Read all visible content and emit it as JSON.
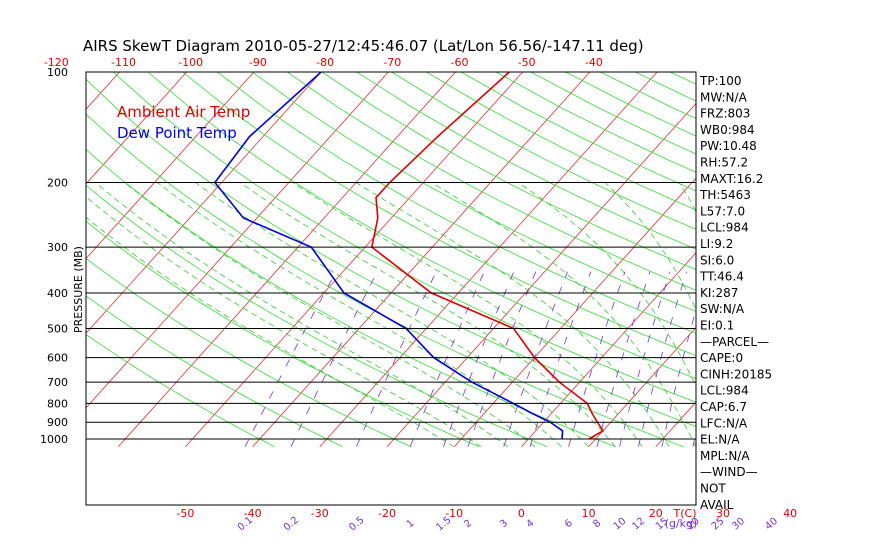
{
  "title": "AIRS SkewT Diagram 2010-05-27/12:45:46.07 (Lat/Lon 56.56/-147.11 deg)",
  "legend": {
    "air_temp": "Ambient Air Temp",
    "dew_temp": "Dew Point Temp"
  },
  "colors": {
    "air": "#e00000",
    "dew": "#0000e0",
    "isotherm": "#e03030",
    "dry_adiabat": "#33dd33",
    "moist_adiabat": "#33cc33",
    "mixing_ratio": "#7733cc",
    "axis_red": "#e00000",
    "ink": "#000000"
  },
  "info": [
    "TP:100",
    "MW:N/A",
    "FRZ:803",
    "WB0:984",
    "PW:10.48",
    "RH:57.2",
    "MAXT:16.2",
    "TH:5463",
    "L57:7.0",
    "LCL:984",
    "LI:9.2",
    "SI:6.0",
    "TT:46.4",
    "KI:287",
    "SW:N/A",
    "EI:0.1",
    "—PARCEL—",
    "CAPE:0",
    "CINH:20185",
    "LCL:984",
    "CAP:6.7",
    "LFC:N/A",
    "EL:N/A",
    "MPL:N/A",
    "—WIND—",
    "NOT",
    "AVAIL"
  ],
  "chart_data": {
    "type": "line",
    "title": "AIRS SkewT Diagram 2010-05-27/12:45:46.07 (Lat/Lon 56.56/-147.11 deg)",
    "ylabel": "PRESSURE (MB)",
    "y_scale": "log",
    "y_direction": "inverted",
    "ylim": [
      1050,
      100
    ],
    "pressure_ticks": [
      100,
      200,
      300,
      400,
      500,
      600,
      700,
      800,
      900,
      1000
    ],
    "bottom_temp_ticks": [
      -50,
      -40,
      -30,
      -20,
      -10,
      0,
      10,
      20,
      30,
      40
    ],
    "bottom_temp_unit": "T(C)",
    "top_temp_ticks": [
      -120,
      -110,
      -100,
      -90,
      -80,
      -70,
      -60,
      -50,
      -40
    ],
    "mixing_ratio_labels": [
      "0.1",
      "0.2",
      "0.5",
      "1",
      "1.5",
      "2",
      "3",
      "4",
      "6",
      "8",
      "10",
      "12",
      "15",
      "20",
      "25",
      "30",
      "40"
    ],
    "mixing_ratio_unit": "(g/kg)",
    "series": [
      {
        "name": "Ambient Air Temp",
        "pressure": [
          1000,
          950,
          900,
          850,
          800,
          700,
          600,
          500,
          400,
          300,
          250,
          220,
          200,
          150,
          100
        ],
        "temp": [
          9,
          10,
          8,
          6,
          4,
          -3,
          -10,
          -17,
          -34,
          -49,
          -52,
          -55,
          -55,
          -54,
          -52
        ]
      },
      {
        "name": "Dew Point Temp",
        "pressure": [
          1000,
          950,
          900,
          850,
          800,
          700,
          600,
          500,
          400,
          300,
          250,
          200,
          150,
          100
        ],
        "temp": [
          5,
          4,
          1,
          -3,
          -7,
          -16,
          -25,
          -33,
          -47,
          -58,
          -72,
          -81,
          -82,
          -80
        ]
      }
    ]
  }
}
